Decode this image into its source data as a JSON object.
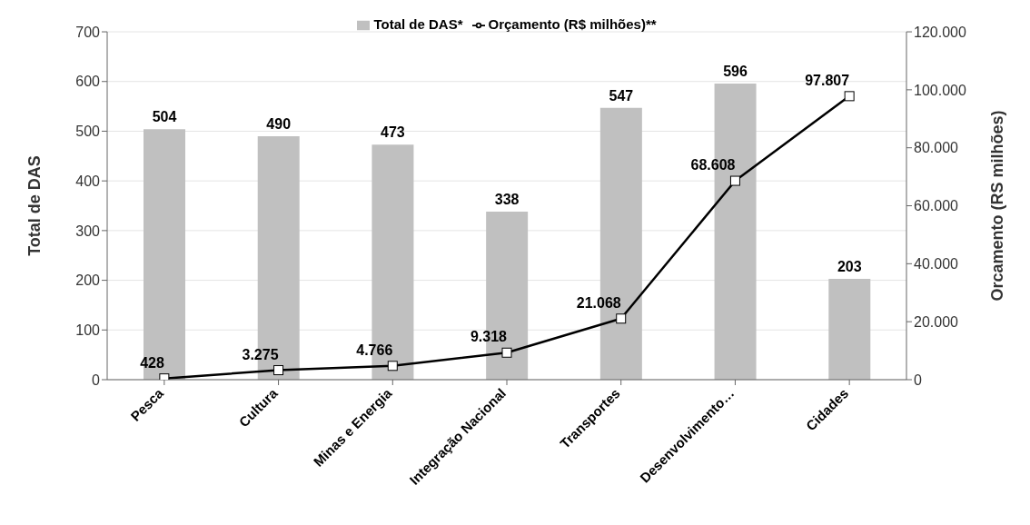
{
  "chart_data": {
    "type": "bar",
    "ylabel": "Total de DAS",
    "y2label": "Orcamento (RS milhões)",
    "categories": [
      "Pesca",
      "Cultura",
      "Minas e Energia",
      "Integração Nacional",
      "Transportes",
      "Desenvolvimento…",
      "Cidades"
    ],
    "series": [
      {
        "name": "Total de DAS*",
        "color": "#c0c0c0",
        "values": [
          504,
          490,
          473,
          338,
          547,
          596,
          203
        ]
      },
      {
        "name": "Orçamento (R$ milhões)**",
        "type": "line",
        "axis": "y2",
        "color": "#000000",
        "marker": "square",
        "values": [
          428,
          3275,
          4766,
          9318,
          21068,
          68608,
          97807
        ],
        "value_labels": [
          "428",
          "3.275",
          "4.766",
          "9.318",
          "21.068",
          "68.608",
          "97.807"
        ]
      }
    ],
    "ylim": [
      0,
      700
    ],
    "yticks": [
      0,
      100,
      200,
      300,
      400,
      500,
      600,
      700
    ],
    "y2lim": [
      0,
      120000
    ],
    "y2ticks": [
      {
        "value": 0,
        "label": "0"
      },
      {
        "value": 20000,
        "label": "20.000"
      },
      {
        "value": 40000,
        "label": "40.000"
      },
      {
        "value": 60000,
        "label": "60.000"
      },
      {
        "value": 80000,
        "label": "80.000"
      },
      {
        "value": 100000,
        "label": "100.000"
      },
      {
        "value": 120000,
        "label": "120.000"
      }
    ],
    "data_labels": true,
    "grid": "y",
    "legend": "top"
  }
}
